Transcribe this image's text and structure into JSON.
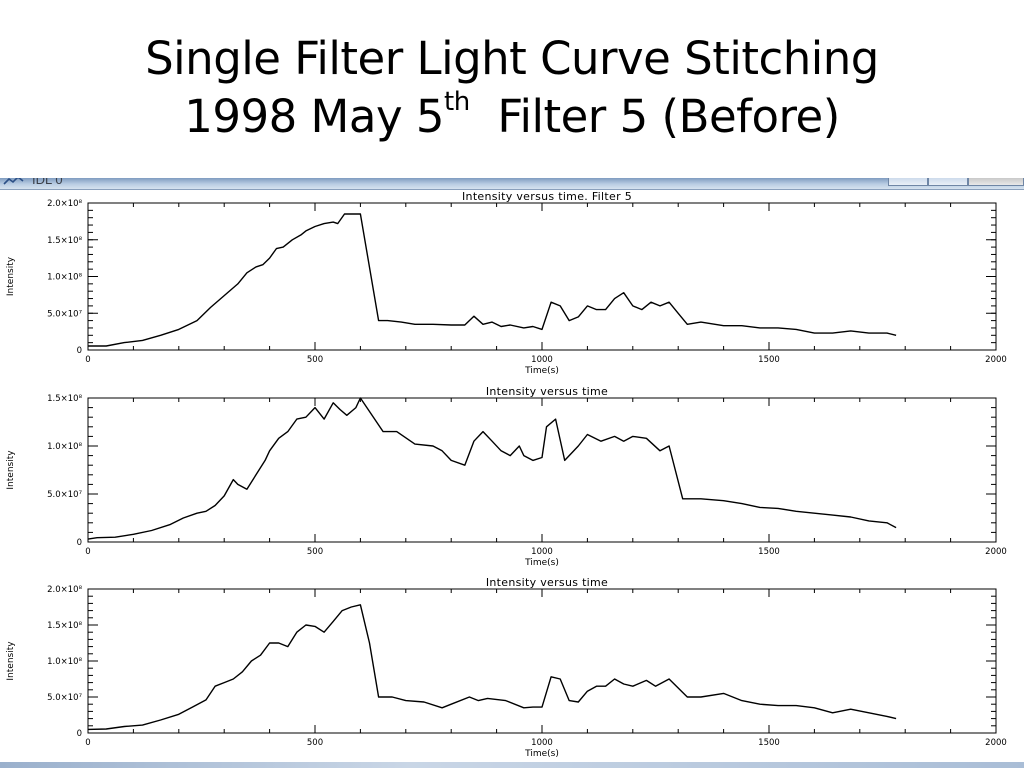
{
  "slide": {
    "title_line1": "Single Filter Light Curve Stitching",
    "title_line2_prefix": "1998 May 5",
    "title_line2_sup": "th",
    "title_line2_suffix": "Filter 5 (Before)"
  },
  "window": {
    "title": "IDL 0",
    "icon": "idl-app-icon",
    "controls": [
      "minimize-icon",
      "maximize-icon",
      "close-icon"
    ]
  },
  "colors": {
    "plot_line": "#000000",
    "titlebar": "#b9cde3"
  },
  "chart_data": [
    {
      "type": "line",
      "title": "Intensity versus time.  Filter 5",
      "xlabel": "Time(s)",
      "ylabel": "Intensity",
      "xlim": [
        0,
        2000
      ],
      "ylim": [
        0,
        200000000.0
      ],
      "x_ticks": [
        0,
        500,
        1000,
        1500,
        2000
      ],
      "x_tick_labels": [
        "0",
        "500",
        "1000",
        "1500",
        "2000"
      ],
      "y_ticks": [
        0,
        50000000.0,
        100000000.0,
        150000000.0,
        200000000.0
      ],
      "y_tick_labels": [
        "0",
        "5.0×10⁷",
        "1.0×10⁸",
        "1.5×10⁸",
        "2.0×10⁸"
      ],
      "grid": false,
      "x": [
        0,
        40,
        80,
        120,
        160,
        200,
        240,
        270,
        300,
        330,
        350,
        370,
        385,
        400,
        415,
        430,
        450,
        470,
        480,
        500,
        520,
        540,
        550,
        565,
        585,
        600,
        640,
        660,
        690,
        720,
        760,
        800,
        830,
        850,
        870,
        890,
        910,
        930,
        960,
        980,
        1000,
        1020,
        1040,
        1060,
        1080,
        1100,
        1120,
        1140,
        1160,
        1180,
        1200,
        1220,
        1240,
        1260,
        1280,
        1300,
        1320,
        1350,
        1400,
        1440,
        1480,
        1520,
        1560,
        1600,
        1640,
        1680,
        1720,
        1760,
        1780
      ],
      "y": [
        5500000.0,
        5500000.0,
        10000000.0,
        13000000.0,
        20000000.0,
        28000000.0,
        40000000.0,
        58000000.0,
        74000000.0,
        90000000.0,
        105000000.0,
        113000000.0,
        116000000.0,
        125000000.0,
        138000000.0,
        140000000.0,
        150000000.0,
        157000000.0,
        162000000.0,
        168000000.0,
        172000000.0,
        174000000.0,
        172000000.0,
        185000000.0,
        185000000.0,
        185000000.0,
        40000000.0,
        40000000.0,
        38000000.0,
        35000000.0,
        35000000.0,
        34000000.0,
        34000000.0,
        46000000.0,
        35000000.0,
        38000000.0,
        32000000.0,
        34000000.0,
        30000000.0,
        32000000.0,
        28000000.0,
        65000000.0,
        60000000.0,
        40000000.0,
        45000000.0,
        60000000.0,
        55000000.0,
        55000000.0,
        70000000.0,
        78000000.0,
        60000000.0,
        55000000.0,
        65000000.0,
        60000000.0,
        65000000.0,
        50000000.0,
        35000000.0,
        38000000.0,
        33000000.0,
        33000000.0,
        30000000.0,
        30000000.0,
        28000000.0,
        23000000.0,
        23000000.0,
        26000000.0,
        23000000.0,
        23000000.0,
        20000000.0
      ]
    },
    {
      "type": "line",
      "title": "Intensity versus time",
      "xlabel": "Time(s)",
      "ylabel": "Intensity",
      "xlim": [
        0,
        2000
      ],
      "ylim": [
        0,
        150000000.0
      ],
      "x_ticks": [
        0,
        500,
        1000,
        1500,
        2000
      ],
      "x_tick_labels": [
        "0",
        "500",
        "1000",
        "1500",
        "2000"
      ],
      "y_ticks": [
        0,
        50000000.0,
        100000000.0,
        150000000.0
      ],
      "y_tick_labels": [
        "0",
        "5.0×10⁷",
        "1.0×10⁸",
        "1.5×10⁸"
      ],
      "grid": false,
      "x": [
        0,
        20,
        60,
        100,
        140,
        180,
        210,
        240,
        260,
        280,
        300,
        320,
        330,
        350,
        370,
        390,
        400,
        420,
        440,
        460,
        480,
        500,
        520,
        540,
        555,
        570,
        590,
        600,
        650,
        680,
        720,
        760,
        780,
        800,
        830,
        850,
        870,
        890,
        910,
        930,
        950,
        960,
        980,
        1000,
        1010,
        1030,
        1050,
        1080,
        1100,
        1130,
        1160,
        1180,
        1200,
        1230,
        1260,
        1280,
        1310,
        1350,
        1400,
        1440,
        1480,
        1520,
        1560,
        1600,
        1640,
        1680,
        1720,
        1760,
        1780
      ],
      "y": [
        3000000.0,
        4500000.0,
        5000000.0,
        8000000.0,
        12000000.0,
        18000000.0,
        25000000.0,
        30000000.0,
        32000000.0,
        38000000.0,
        48000000.0,
        65000000.0,
        60000000.0,
        55000000.0,
        70000000.0,
        85000000.0,
        95000000.0,
        108000000.0,
        115000000.0,
        128000000.0,
        130000000.0,
        140000000.0,
        128000000.0,
        145000000.0,
        138000000.0,
        132000000.0,
        140000000.0,
        150000000.0,
        115000000.0,
        115000000.0,
        102000000.0,
        100000000.0,
        95000000.0,
        85000000.0,
        80000000.0,
        105000000.0,
        115000000.0,
        105000000.0,
        95000000.0,
        90000000.0,
        100000000.0,
        90000000.0,
        85000000.0,
        88000000.0,
        120000000.0,
        128000000.0,
        85000000.0,
        100000000.0,
        112000000.0,
        105000000.0,
        110000000.0,
        105000000.0,
        110000000.0,
        108000000.0,
        95000000.0,
        100000000.0,
        45000000.0,
        45000000.0,
        43000000.0,
        40000000.0,
        36000000.0,
        35000000.0,
        32000000.0,
        30000000.0,
        28000000.0,
        26000000.0,
        22000000.0,
        20000000.0,
        15000000.0
      ]
    },
    {
      "type": "line",
      "title": "Intensity versus time",
      "xlabel": "Time(s)",
      "ylabel": "Intensity",
      "xlim": [
        0,
        2000
      ],
      "ylim": [
        0,
        200000000.0
      ],
      "x_ticks": [
        0,
        500,
        1000,
        1500,
        2000
      ],
      "x_tick_labels": [
        "0",
        "500",
        "1000",
        "1500",
        "2000"
      ],
      "y_ticks": [
        0,
        50000000.0,
        100000000.0,
        150000000.0,
        200000000.0
      ],
      "y_tick_labels": [
        "0",
        "5.0×10⁷",
        "1.0×10⁸",
        "1.5×10⁸",
        "2.0×10⁸"
      ],
      "grid": false,
      "x": [
        0,
        40,
        80,
        120,
        160,
        200,
        230,
        260,
        280,
        300,
        320,
        340,
        360,
        380,
        400,
        420,
        440,
        460,
        480,
        500,
        520,
        540,
        560,
        580,
        600,
        620,
        640,
        670,
        700,
        740,
        780,
        800,
        840,
        860,
        880,
        920,
        960,
        980,
        1000,
        1020,
        1040,
        1060,
        1080,
        1100,
        1120,
        1140,
        1160,
        1180,
        1200,
        1230,
        1250,
        1280,
        1320,
        1350,
        1400,
        1440,
        1480,
        1520,
        1560,
        1600,
        1640,
        1680,
        1720,
        1760,
        1780
      ],
      "y": [
        5000000.0,
        5500000.0,
        9000000.0,
        11000000.0,
        18000000.0,
        26000000.0,
        36000000.0,
        46000000.0,
        65000000.0,
        70000000.0,
        75000000.0,
        85000000.0,
        100000000.0,
        108000000.0,
        125000000.0,
        125000000.0,
        120000000.0,
        140000000.0,
        150000000.0,
        148000000.0,
        140000000.0,
        155000000.0,
        170000000.0,
        175000000.0,
        178000000.0,
        125000000.0,
        50000000.0,
        50000000.0,
        45000000.0,
        43000000.0,
        35000000.0,
        40000000.0,
        50000000.0,
        45000000.0,
        48000000.0,
        45000000.0,
        35000000.0,
        36000000.0,
        36000000.0,
        78000000.0,
        75000000.0,
        45000000.0,
        43000000.0,
        58000000.0,
        65000000.0,
        65000000.0,
        75000000.0,
        68000000.0,
        65000000.0,
        73000000.0,
        65000000.0,
        75000000.0,
        50000000.0,
        50000000.0,
        55000000.0,
        45000000.0,
        40000000.0,
        38000000.0,
        38000000.0,
        35000000.0,
        28000000.0,
        33000000.0,
        28000000.0,
        23000000.0,
        20000000.0
      ]
    }
  ]
}
